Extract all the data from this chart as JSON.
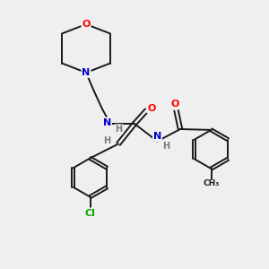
{
  "background_color": "#efefef",
  "bond_color": "#1a1a1a",
  "bond_lw": 1.4,
  "atom_colors": {
    "O": "#ff0000",
    "N": "#0000cd",
    "Cl": "#00aa00",
    "H": "#7a7a7a"
  },
  "figsize": [
    3.0,
    3.0
  ],
  "dpi": 100
}
